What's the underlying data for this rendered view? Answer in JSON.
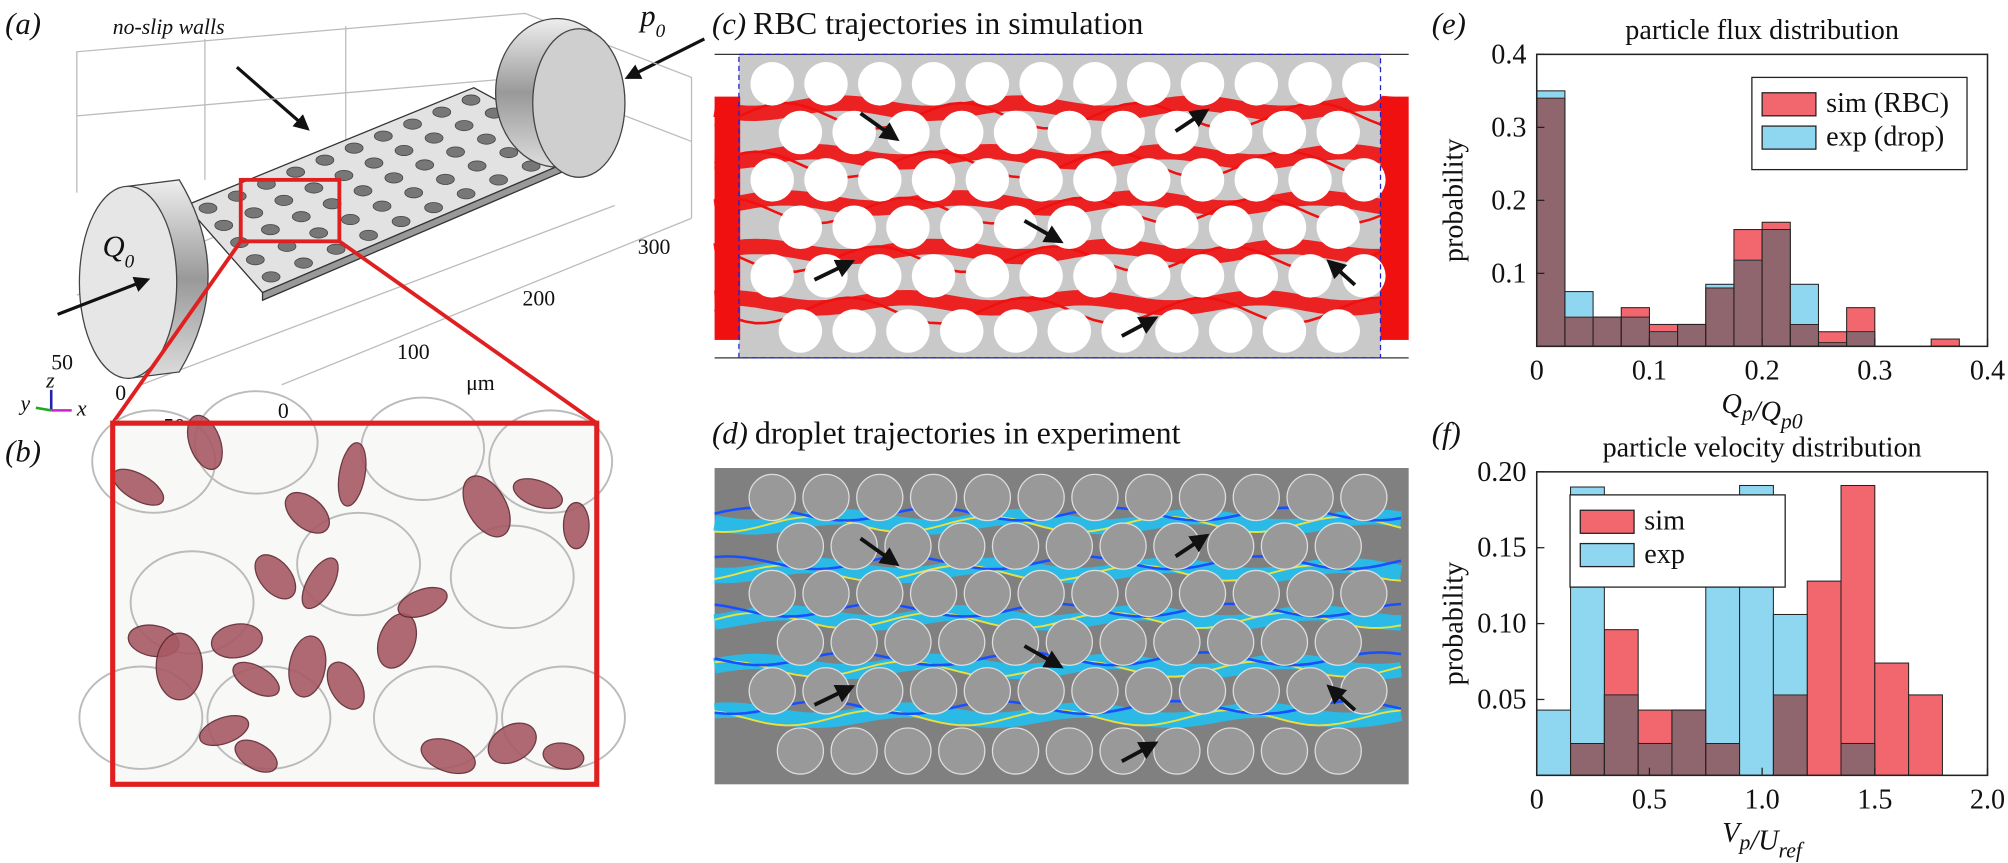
{
  "panels": {
    "a": {
      "label": "(a)",
      "walls": "no-slip walls",
      "outlet": [
        "p",
        "0"
      ],
      "inlet": [
        "Q",
        "0"
      ],
      "axis_ticks": [
        "50",
        "0",
        "−50",
        "0",
        "100",
        "200",
        "300"
      ],
      "unit": "μm",
      "triad": [
        "y",
        "z",
        "x"
      ]
    },
    "b": {
      "label": "(b)"
    },
    "c": {
      "label": "(c)",
      "title": "RBC trajectories in simulation"
    },
    "d": {
      "label": "(d)",
      "title": "droplet trajectories in experiment"
    },
    "e": {
      "label": "(e)"
    },
    "f": {
      "label": "(f)"
    }
  },
  "chart_data": [
    {
      "type": "histogram",
      "title": "particle flux distribution",
      "ylabel": "probability",
      "xlabel": [
        [
          "Q",
          "p"
        ],
        [
          "/Q",
          "p0"
        ]
      ],
      "bins": [
        0,
        0.025,
        0.05,
        0.075,
        0.1,
        0.125,
        0.15,
        0.175,
        0.2,
        0.225,
        0.25,
        0.275,
        0.3,
        0.325,
        0.35,
        0.375,
        0.4
      ],
      "series": [
        {
          "name": "sim (RBC)",
          "color": "#f2666e",
          "values": [
            0.34,
            0.04,
            0.04,
            0.053,
            0.03,
            0.03,
            0.08,
            0.16,
            0.17,
            0.03,
            0.02,
            0.053,
            0,
            0,
            0.01,
            0
          ]
        },
        {
          "name": "exp (drop)",
          "color": "#8fd6f0",
          "values": [
            0.35,
            0.075,
            0.04,
            0.04,
            0.02,
            0.03,
            0.085,
            0.118,
            0.16,
            0.085,
            0.005,
            0.02,
            0,
            0,
            0,
            0
          ]
        }
      ],
      "xlim": [
        0,
        0.4
      ],
      "ylim": [
        0,
        0.4
      ],
      "xticks": [
        0,
        0.1,
        0.2,
        0.3,
        0.4
      ],
      "yticks": [
        0.1,
        0.2,
        0.3,
        0.4
      ],
      "legend": "upper right"
    },
    {
      "type": "histogram",
      "title": "particle velocity distribution",
      "ylabel": "probability",
      "xlabel": [
        [
          "V",
          "p"
        ],
        [
          "/U",
          "ref"
        ]
      ],
      "bins": [
        0,
        0.15,
        0.3,
        0.45,
        0.6,
        0.75,
        0.9,
        1.05,
        1.2,
        1.35,
        1.5,
        1.65,
        1.8
      ],
      "series": [
        {
          "name": "sim",
          "color": "#f2666e",
          "values": [
            0,
            0.021,
            0.096,
            0.043,
            0.043,
            0.021,
            0,
            0.053,
            0.128,
            0.191,
            0.074,
            0.053
          ]
        },
        {
          "name": "exp",
          "color": "#8fd6f0",
          "values": [
            0.043,
            0.19,
            0.053,
            0.021,
            0.043,
            0.138,
            0.191,
            0.106,
            0,
            0.021,
            0,
            0
          ]
        }
      ],
      "xlim": [
        0,
        2
      ],
      "ylim": [
        0,
        0.2
      ],
      "xticks": [
        0,
        0.5,
        {
          "value": 1,
          "label": "1.0"
        },
        1.5,
        {
          "value": 2,
          "label": "2.0"
        }
      ],
      "yticks": [
        0.05,
        {
          "value": 0.1,
          "label": "0.10"
        },
        0.15,
        {
          "value": 0.2,
          "label": "0.20"
        }
      ],
      "legend": "upper left"
    }
  ]
}
